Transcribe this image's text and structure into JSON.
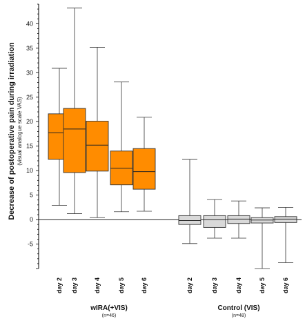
{
  "chart_data": {
    "type": "boxplot",
    "ylabel": "Decrease of postoperative pain during irradiation",
    "ylabel_sub": "(visual analogue scale VAS)",
    "yticks": [
      -5,
      0,
      5,
      10,
      15,
      20,
      25,
      30,
      35,
      40
    ],
    "ylim": [
      -10,
      44
    ],
    "zero_line": true,
    "groups": [
      {
        "name": "wIRA(+VIS)",
        "n_label": "(n=46)",
        "color": "#ff8c00",
        "categories": [
          "day 2",
          "day 3",
          "day 4",
          "day 5",
          "day 6"
        ],
        "boxes": [
          {
            "min": 2.9,
            "q1": 12.3,
            "median": 17.7,
            "q3": 21.6,
            "max": 30.9
          },
          {
            "min": 1.2,
            "q1": 9.6,
            "median": 18.5,
            "q3": 22.7,
            "max": 43.2
          },
          {
            "min": 0.4,
            "q1": 9.9,
            "median": 15.2,
            "q3": 20.1,
            "max": 35.2
          },
          {
            "min": 1.6,
            "q1": 7.1,
            "median": 10.5,
            "q3": 14.0,
            "max": 28.1
          },
          {
            "min": 1.7,
            "q1": 6.2,
            "median": 9.8,
            "q3": 14.5,
            "max": 20.9
          }
        ]
      },
      {
        "name": "Control (VIS)",
        "n_label": "(n=48)",
        "color": "#d9d9d9",
        "categories": [
          "day 2",
          "day 3",
          "day 4",
          "day 5",
          "day 6"
        ],
        "boxes": [
          {
            "min": -4.9,
            "q1": -1.0,
            "median": -0.2,
            "q3": 0.8,
            "max": 12.3
          },
          {
            "min": -3.8,
            "q1": -1.6,
            "median": 0.0,
            "q3": 0.8,
            "max": 4.1
          },
          {
            "min": -3.8,
            "q1": -0.8,
            "median": 0.1,
            "q3": 0.8,
            "max": 3.8
          },
          {
            "min": -10.0,
            "q1": -0.7,
            "median": -0.1,
            "q3": 0.4,
            "max": 2.4
          },
          {
            "min": -8.8,
            "q1": -0.6,
            "median": 0.1,
            "q3": 0.6,
            "max": 2.5
          }
        ]
      }
    ]
  }
}
